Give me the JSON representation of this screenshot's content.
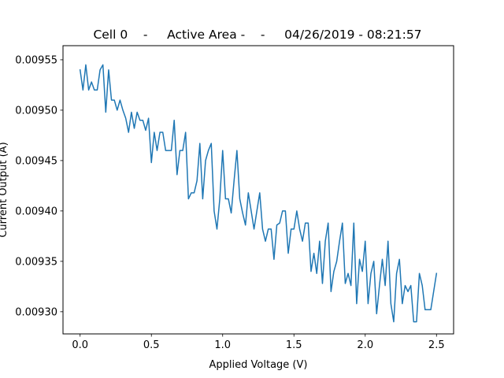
{
  "chart_data": {
    "type": "line",
    "title": "Cell 0    -     Active Area -    -     04/26/2019 - 08:21:57",
    "xlabel": "Applied Voltage (V)",
    "ylabel": "Current Output (A)",
    "xlim": [
      -0.12,
      2.62
    ],
    "ylim": [
      0.009278,
      0.009564
    ],
    "x_ticks": [
      0.0,
      0.5,
      1.0,
      1.5,
      2.0,
      2.5
    ],
    "x_tick_labels": [
      "0.0",
      "0.5",
      "1.0",
      "1.5",
      "2.0",
      "2.5"
    ],
    "y_ticks": [
      0.0093,
      0.00935,
      0.0094,
      0.00945,
      0.0095,
      0.00955
    ],
    "y_tick_labels": [
      "0.00930",
      "0.00935",
      "0.00940",
      "0.00945",
      "0.00950",
      "0.00955"
    ],
    "grid": false,
    "line_color": "#1f77b4",
    "series": [
      {
        "x": [
          0.0,
          0.02,
          0.04,
          0.06,
          0.08,
          0.1,
          0.12,
          0.14,
          0.16,
          0.18,
          0.2,
          0.22,
          0.24,
          0.26,
          0.28,
          0.3,
          0.32,
          0.34,
          0.36,
          0.38,
          0.4,
          0.42,
          0.44,
          0.46,
          0.48,
          0.5,
          0.52,
          0.54,
          0.56,
          0.58,
          0.6,
          0.62,
          0.64,
          0.66,
          0.68,
          0.7,
          0.72,
          0.74,
          0.76,
          0.78,
          0.8,
          0.82,
          0.84,
          0.86,
          0.88,
          0.9,
          0.92,
          0.94,
          0.96,
          0.98,
          1.0,
          1.02,
          1.04,
          1.06,
          1.08,
          1.1,
          1.12,
          1.14,
          1.16,
          1.18,
          1.2,
          1.22,
          1.24,
          1.26,
          1.28,
          1.3,
          1.32,
          1.34,
          1.36,
          1.38,
          1.4,
          1.42,
          1.44,
          1.46,
          1.48,
          1.5,
          1.52,
          1.54,
          1.56,
          1.58,
          1.6,
          1.62,
          1.64,
          1.66,
          1.68,
          1.7,
          1.72,
          1.74,
          1.76,
          1.78,
          1.8,
          1.82,
          1.84,
          1.86,
          1.88,
          1.9,
          1.92,
          1.94,
          1.96,
          1.98,
          2.0,
          2.02,
          2.04,
          2.06,
          2.08,
          2.1,
          2.12,
          2.14,
          2.16,
          2.18,
          2.2,
          2.22,
          2.24,
          2.26,
          2.28,
          2.3,
          2.32,
          2.34,
          2.36,
          2.38,
          2.4,
          2.42,
          2.44,
          2.46,
          2.48,
          2.5
        ],
        "y": [
          0.00954,
          0.00952,
          0.009545,
          0.00952,
          0.009528,
          0.00952,
          0.00952,
          0.00954,
          0.009545,
          0.009498,
          0.00954,
          0.00951,
          0.00951,
          0.0095,
          0.00951,
          0.0095,
          0.009492,
          0.009478,
          0.009498,
          0.009482,
          0.009498,
          0.00949,
          0.00949,
          0.00948,
          0.009492,
          0.009448,
          0.009478,
          0.00946,
          0.009478,
          0.009478,
          0.00946,
          0.00946,
          0.00946,
          0.00949,
          0.009436,
          0.00946,
          0.00946,
          0.009478,
          0.009412,
          0.009418,
          0.009418,
          0.00943,
          0.009467,
          0.009412,
          0.00945,
          0.00946,
          0.009467,
          0.0094,
          0.009382,
          0.009412,
          0.00946,
          0.009412,
          0.009412,
          0.009398,
          0.00943,
          0.00946,
          0.009412,
          0.009398,
          0.009386,
          0.009418,
          0.0094,
          0.009382,
          0.0094,
          0.009418,
          0.009382,
          0.00937,
          0.009382,
          0.009382,
          0.009352,
          0.009386,
          0.009388,
          0.0094,
          0.0094,
          0.009358,
          0.009382,
          0.009382,
          0.0094,
          0.009382,
          0.00937,
          0.009388,
          0.009388,
          0.00934,
          0.009358,
          0.009338,
          0.00937,
          0.009328,
          0.00937,
          0.009388,
          0.00932,
          0.00934,
          0.00935,
          0.00937,
          0.009388,
          0.009328,
          0.009338,
          0.009326,
          0.009388,
          0.009308,
          0.009352,
          0.00934,
          0.00937,
          0.009308,
          0.009338,
          0.00935,
          0.009298,
          0.009326,
          0.009352,
          0.009326,
          0.00937,
          0.009308,
          0.00929,
          0.009338,
          0.009352,
          0.009308,
          0.009326,
          0.00932,
          0.009326,
          0.00929,
          0.00929,
          0.009338,
          0.009326,
          0.009302,
          0.009302,
          0.009302,
          0.00932,
          0.009338
        ]
      }
    ]
  }
}
